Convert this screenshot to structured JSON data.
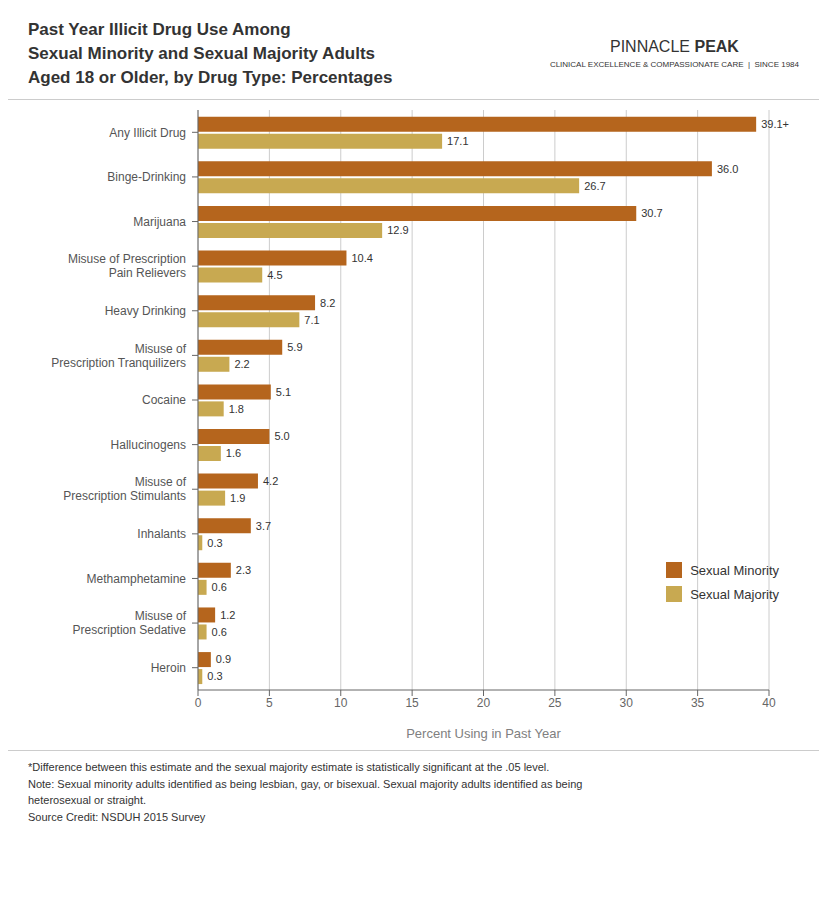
{
  "chart_data": {
    "type": "bar",
    "orientation": "horizontal",
    "title": "Past Year Illicit Drug Use Among\nSexual Minority and Sexual Majority Adults\nAged 18 or Older, by Drug Type: Percentages",
    "categories": [
      "Any Illicit Drug",
      "Binge-Drinking",
      "Marijuana",
      "Misuse of Prescription\nPain Relievers",
      "Heavy Drinking",
      "Misuse of\nPrescription Tranquilizers",
      "Cocaine",
      "Hallucinogens",
      "Misuse of\nPrescription Stimulants",
      "Inhalants",
      "Methamphetamine",
      "Misuse of\nPrescription Sedative",
      "Heroin"
    ],
    "series": [
      {
        "name": "Sexual Minority",
        "color": "#B5651D",
        "values": [
          39.1,
          36.0,
          30.7,
          10.4,
          8.2,
          5.9,
          5.1,
          5.0,
          4.2,
          3.7,
          2.3,
          1.2,
          0.9
        ],
        "value_labels": [
          "39.1+",
          "36.0",
          "30.7",
          "10.4",
          "8.2",
          "5.9",
          "5.1",
          "5.0",
          "4.2",
          "3.7",
          "2.3",
          "1.2",
          "0.9"
        ]
      },
      {
        "name": "Sexual Majority",
        "color": "#C8A951",
        "values": [
          17.1,
          26.7,
          12.9,
          4.5,
          7.1,
          2.2,
          1.8,
          1.6,
          1.9,
          0.3,
          0.6,
          0.6,
          0.3
        ],
        "value_labels": [
          "17.1",
          "26.7",
          "12.9",
          "4.5",
          "7.1",
          "2.2",
          "1.8",
          "1.6",
          "1.9",
          "0.3",
          "0.6",
          "0.6",
          "0.3"
        ]
      }
    ],
    "xlabel": "Percent Using in Past Year",
    "xlim": [
      0,
      40
    ],
    "xticks": [
      0,
      5,
      10,
      15,
      20,
      25,
      30,
      35,
      40
    ],
    "grid": true,
    "legend": "lower right",
    "data_labels": true,
    "annotations": [
      "*Difference between this estimate and the sexual majority estimate is statistically significant at the .05 level.",
      "Note: Sexual minority adults identified as being lesbian, gay, or bisexual. Sexual majority adults identified as being",
      "heterosexual or straight.",
      "Source Credit: NSDUH 2015 Survey"
    ],
    "logo": [
      "PINNACLE",
      "PEAK",
      "CLINICAL EXCELLENCE & COMPASSIONATE CARE  |  SINCE 1984"
    ]
  }
}
